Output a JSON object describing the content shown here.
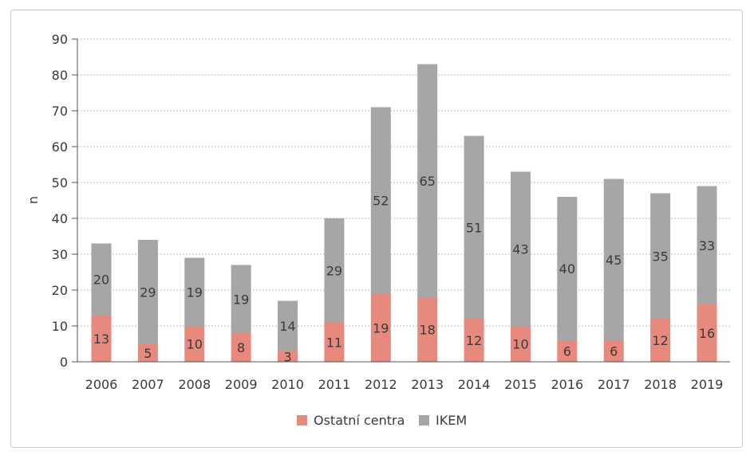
{
  "chart_data": {
    "type": "bar",
    "stacked": true,
    "title": "",
    "xlabel": "",
    "ylabel": "n",
    "ylim": [
      0,
      90
    ],
    "yticks": [
      0,
      10,
      20,
      30,
      40,
      50,
      60,
      70,
      80,
      90
    ],
    "grid": true,
    "legend_position": "bottom",
    "categories": [
      "2006",
      "2007",
      "2008",
      "2009",
      "2010",
      "2011",
      "2012",
      "2013",
      "2014",
      "2015",
      "2016",
      "2017",
      "2018",
      "2019"
    ],
    "series": [
      {
        "name": "Ostatní centra",
        "color": "#e8897e",
        "values": [
          13,
          5,
          10,
          8,
          3,
          11,
          19,
          18,
          12,
          10,
          6,
          6,
          12,
          16
        ]
      },
      {
        "name": "IKEM",
        "color": "#a6a6a6",
        "values": [
          20,
          29,
          19,
          19,
          14,
          29,
          52,
          65,
          51,
          43,
          40,
          45,
          35,
          33
        ]
      }
    ]
  }
}
